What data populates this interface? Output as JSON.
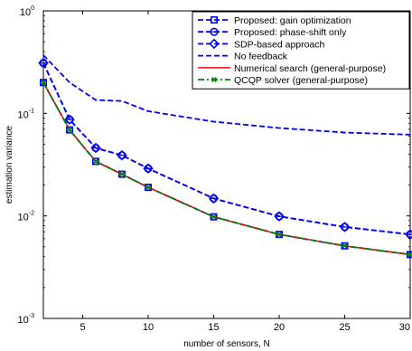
{
  "chart_data": {
    "type": "line",
    "title": "",
    "xlabel": "number of sensors, N",
    "ylabel": "estimation variance",
    "xlim": [
      2,
      30
    ],
    "ylim": [
      0.001,
      1
    ],
    "yscale": "log",
    "grid": false,
    "legend_position": "top-right",
    "x_ticks": [
      5,
      10,
      15,
      20,
      25,
      30
    ],
    "y_ticks": [
      {
        "value": 0.001,
        "base": "10",
        "exp": "-3"
      },
      {
        "value": 0.01,
        "base": "10",
        "exp": "-2"
      },
      {
        "value": 0.1,
        "base": "10",
        "exp": "-1"
      },
      {
        "value": 1,
        "base": "10",
        "exp": "0"
      }
    ],
    "x": [
      2,
      4,
      6,
      8,
      10,
      15,
      20,
      25,
      30
    ],
    "series": [
      {
        "name": "Proposed: gain optimization",
        "color": "#0000ff",
        "dash": "dashed",
        "marker": "square",
        "values": [
          0.2,
          0.069,
          0.034,
          0.0255,
          0.019,
          0.0098,
          0.0066,
          0.0051,
          0.0042
        ]
      },
      {
        "name": "Proposed: phase-shift only",
        "color": "#0000ff",
        "dash": "dashed",
        "marker": "circle",
        "values": [
          0.31,
          0.087,
          0.046,
          0.039,
          0.029,
          0.0148,
          0.0099,
          0.0078,
          0.0066
        ]
      },
      {
        "name": "SDP-based approach",
        "color": "#0000ff",
        "dash": "dashed",
        "marker": "diamond",
        "values": [
          0.31,
          0.087,
          0.046,
          0.039,
          0.029,
          0.0148,
          0.0099,
          0.0078,
          0.0066
        ]
      },
      {
        "name": "No feedback",
        "color": "#0000ff",
        "dash": "dashed",
        "marker": "none",
        "values": [
          0.37,
          0.2,
          0.135,
          0.132,
          0.105,
          0.083,
          0.072,
          0.065,
          0.062
        ]
      },
      {
        "name": "Numerical search (general-purpose)",
        "color": "#ff0000",
        "dash": "solid",
        "marker": "none",
        "values": [
          0.2,
          0.069,
          0.034,
          0.0255,
          0.019,
          0.0098,
          0.0066,
          0.0051,
          0.0042
        ]
      },
      {
        "name": "QCQP solver (general-purpose)",
        "color": "#008000",
        "dash": "dashdot",
        "marker": "x",
        "values": [
          0.2,
          0.069,
          0.034,
          0.0255,
          0.019,
          0.0098,
          0.0066,
          0.0051,
          0.0042
        ]
      }
    ]
  }
}
